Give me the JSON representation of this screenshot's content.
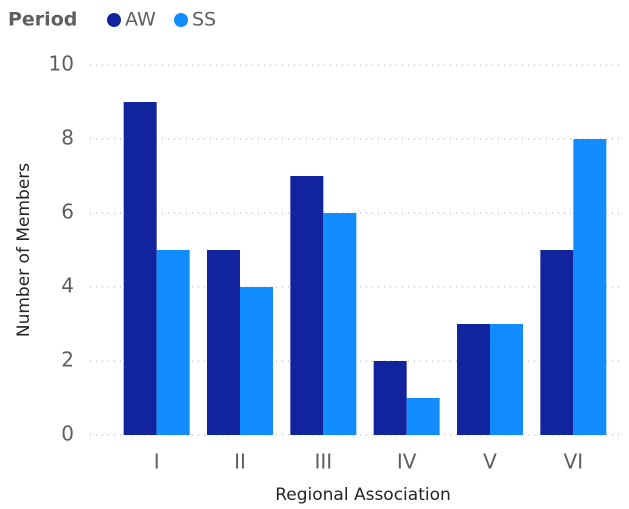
{
  "chart_data": {
    "type": "bar",
    "legend_title": "Period",
    "x_label": "Regional Association",
    "y_label": "Number of Members",
    "categories": [
      "I",
      "II",
      "III",
      "IV",
      "V",
      "VI"
    ],
    "series": [
      {
        "name": "AW",
        "color": "#12239e",
        "values": [
          9,
          5,
          7,
          2,
          3,
          5
        ]
      },
      {
        "name": "SS",
        "color": "#118dff",
        "values": [
          5,
          4,
          6,
          1,
          3,
          8
        ]
      }
    ],
    "ylim": [
      0,
      10
    ],
    "yticks": [
      0,
      2,
      4,
      6,
      8,
      10
    ],
    "grid": true
  }
}
